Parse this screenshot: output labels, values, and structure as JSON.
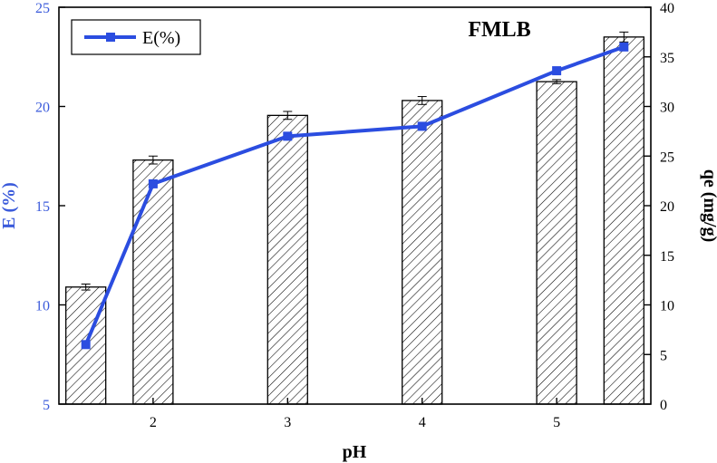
{
  "chart_data": {
    "type": "bar+line",
    "panel_label": "FMLB",
    "x_ticks": [
      "2",
      "3",
      "4",
      "5"
    ],
    "x_tick_values": [
      2,
      3,
      4,
      5
    ],
    "xlim": [
      1.3,
      5.7
    ],
    "xlabel": "pH",
    "left_axis": {
      "label": "E (%)",
      "ylim": [
        5,
        25
      ],
      "ticks": [
        "5",
        "10",
        "15",
        "20",
        "25"
      ],
      "tick_values": [
        5,
        10,
        15,
        20,
        25
      ],
      "color": "#3b5bdb"
    },
    "right_axis": {
      "label": "qe (mg/g)",
      "ylim": [
        0,
        40
      ],
      "ticks": [
        "0",
        "5",
        "10",
        "15",
        "20",
        "25",
        "30",
        "35",
        "40"
      ],
      "tick_values": [
        0,
        5,
        10,
        15,
        20,
        25,
        30,
        35,
        40
      ],
      "color": "#000000"
    },
    "bars": {
      "axis": "right",
      "x": [
        1.5,
        2.0,
        3.0,
        4.0,
        5.0,
        5.5
      ],
      "values": [
        11.8,
        24.6,
        29.1,
        30.6,
        32.5,
        37.0
      ],
      "errors": [
        0.3,
        0.4,
        0.4,
        0.4,
        0.2,
        0.5
      ],
      "fill_pattern": "diagonal-hatch"
    },
    "series": [
      {
        "name": "E(%)",
        "axis": "left",
        "x": [
          1.5,
          2.0,
          3.0,
          4.0,
          5.0,
          5.5
        ],
        "values": [
          8.0,
          16.1,
          18.5,
          19.0,
          21.8,
          23.0
        ],
        "color": "#2b4de0",
        "marker": "square"
      }
    ],
    "legend": {
      "position": "top-left",
      "entries": [
        "E(%)"
      ]
    },
    "grid": false
  }
}
